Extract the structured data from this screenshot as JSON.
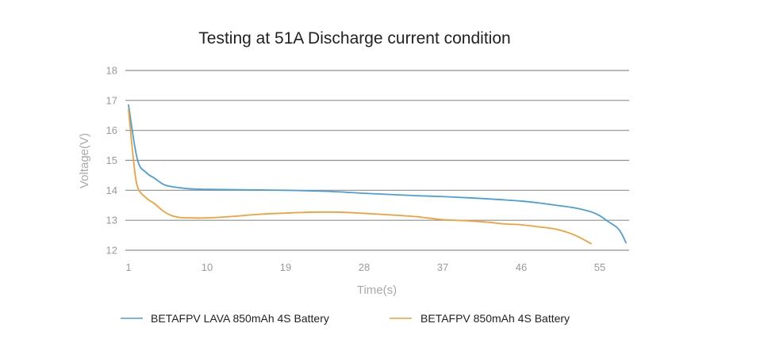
{
  "chart_data": {
    "type": "line",
    "title": "Testing at 51A Discharge current condition",
    "xlabel": "Time(s)",
    "ylabel": "Voltage(V)",
    "xlim": [
      1,
      58
    ],
    "ylim": [
      12,
      18
    ],
    "x_ticks": [
      "1",
      "10",
      "19",
      "28",
      "37",
      "46",
      "55"
    ],
    "x_tick_values": [
      1,
      10,
      19,
      28,
      37,
      46,
      55
    ],
    "y_ticks": [
      "12",
      "13",
      "14",
      "15",
      "16",
      "17",
      "18"
    ],
    "y_tick_values": [
      12,
      13,
      14,
      15,
      16,
      17,
      18
    ],
    "grid": "horizontal",
    "legend_position": "bottom",
    "series": [
      {
        "name": "BETAFPV LAVA 850mAh 4S Battery",
        "color": "#4a9fd6",
        "points": [
          [
            1,
            16.85
          ],
          [
            2,
            15.05
          ],
          [
            3,
            14.6
          ],
          [
            4,
            14.4
          ],
          [
            5,
            14.2
          ],
          [
            6,
            14.12
          ],
          [
            7,
            14.08
          ],
          [
            8,
            14.05
          ],
          [
            10,
            14.03
          ],
          [
            13,
            14.02
          ],
          [
            16,
            14.01
          ],
          [
            19,
            14.0
          ],
          [
            22,
            13.98
          ],
          [
            25,
            13.95
          ],
          [
            28,
            13.9
          ],
          [
            31,
            13.86
          ],
          [
            34,
            13.82
          ],
          [
            37,
            13.79
          ],
          [
            40,
            13.75
          ],
          [
            43,
            13.7
          ],
          [
            46,
            13.64
          ],
          [
            48,
            13.58
          ],
          [
            50,
            13.5
          ],
          [
            52,
            13.42
          ],
          [
            54,
            13.28
          ],
          [
            55,
            13.15
          ],
          [
            56,
            12.95
          ],
          [
            57,
            12.75
          ],
          [
            57.5,
            12.55
          ],
          [
            58,
            12.25
          ]
        ]
      },
      {
        "name": "BETAFPV 850mAh 4S Battery",
        "color": "#f0a13c",
        "points": [
          [
            1,
            16.7
          ],
          [
            1.5,
            15.2
          ],
          [
            2,
            14.15
          ],
          [
            3,
            13.75
          ],
          [
            4,
            13.55
          ],
          [
            5,
            13.3
          ],
          [
            6,
            13.15
          ],
          [
            7,
            13.09
          ],
          [
            8,
            13.08
          ],
          [
            10,
            13.08
          ],
          [
            13,
            13.13
          ],
          [
            16,
            13.2
          ],
          [
            19,
            13.24
          ],
          [
            22,
            13.27
          ],
          [
            25,
            13.27
          ],
          [
            28,
            13.23
          ],
          [
            31,
            13.18
          ],
          [
            34,
            13.12
          ],
          [
            37,
            13.02
          ],
          [
            40,
            12.98
          ],
          [
            42,
            12.94
          ],
          [
            44,
            12.88
          ],
          [
            46,
            12.85
          ],
          [
            48,
            12.78
          ],
          [
            50,
            12.7
          ],
          [
            52,
            12.52
          ],
          [
            54,
            12.22
          ]
        ]
      }
    ]
  }
}
